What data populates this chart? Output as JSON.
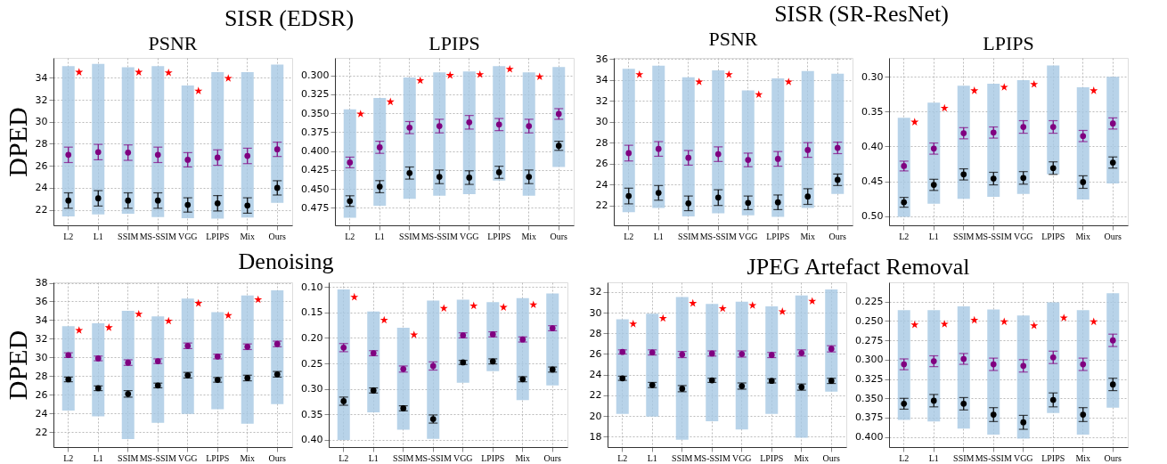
{
  "chart_data": [
    {
      "type": "bar",
      "title": "SISR (EDSR)",
      "subtitle": "PSNR",
      "ylabel": "DPED",
      "grid": true,
      "categories": [
        "L2",
        "L1",
        "SSIM",
        "MS-SSIM",
        "VGG",
        "LPIPS",
        "Mix",
        "Ours"
      ],
      "ylim": [
        20.6,
        35.8
      ],
      "yticks": [
        22,
        24,
        26,
        28,
        30,
        32,
        34
      ],
      "series": [
        {
          "color": "#a6c8e3",
          "base": [
            21.4,
            21.6,
            21.65,
            21.35,
            21.25,
            21.2,
            21.3,
            22.65
          ],
          "values": [
            13.65,
            13.65,
            13.3,
            13.7,
            12.05,
            13.3,
            13.2,
            12.55
          ]
        },
        {
          "type": "scatter",
          "marker": "circle",
          "color": "#800080",
          "values": [
            27.0,
            27.25,
            27.2,
            27.0,
            26.55,
            26.75,
            26.9,
            27.5
          ],
          "errors": [
            0.7,
            0.7,
            0.7,
            0.7,
            0.65,
            0.7,
            0.7,
            0.65
          ]
        },
        {
          "type": "scatter",
          "marker": "circle",
          "color": "#000000",
          "values": [
            22.85,
            23.05,
            22.85,
            22.85,
            22.45,
            22.6,
            22.4,
            24.0
          ],
          "errors": [
            0.7,
            0.7,
            0.7,
            0.7,
            0.65,
            0.7,
            0.7,
            0.65
          ]
        },
        {
          "type": "scatter",
          "marker": "star",
          "color": "#ff0000",
          "values": [
            34.5,
            null,
            34.5,
            34.45,
            32.8,
            33.95,
            null,
            null
          ]
        }
      ]
    },
    {
      "type": "bar",
      "subtitle": "LPIPS",
      "grid": true,
      "categories": [
        "L2",
        "L1",
        "SSIM",
        "MS-SSIM",
        "VGG",
        "LPIPS",
        "Mix",
        "Ours"
      ],
      "ylim": [
        0.498,
        0.277
      ],
      "yticks": [
        {
          "value": 0.3,
          "label": "0.300"
        },
        0.325,
        {
          "value": 0.35,
          "label": "0.350"
        },
        0.375,
        {
          "value": 0.4,
          "label": "0.400"
        },
        0.425,
        {
          "value": 0.45,
          "label": "0.450"
        },
        0.475
      ],
      "series": [
        {
          "color": "#a6c8e3",
          "base": [
            0.345,
            0.33,
            0.303,
            0.296,
            0.295,
            0.288,
            0.296,
            0.289
          ],
          "values": [
            0.143,
            0.142,
            0.16,
            0.163,
            0.162,
            0.151,
            0.163,
            0.132
          ]
        },
        {
          "type": "scatter",
          "marker": "circle",
          "color": "#800080",
          "values": [
            0.415,
            0.395,
            0.369,
            0.367,
            0.362,
            0.365,
            0.367,
            0.351
          ],
          "errors": [
            0.007,
            0.008,
            0.008,
            0.009,
            0.009,
            0.008,
            0.009,
            0.007
          ]
        },
        {
          "type": "scatter",
          "marker": "circle",
          "color": "#000000",
          "values": [
            0.466,
            0.447,
            0.429,
            0.434,
            0.435,
            0.428,
            0.434,
            0.393
          ],
          "errors": [
            0.007,
            0.008,
            0.008,
            0.009,
            0.009,
            0.008,
            0.009,
            0.006
          ]
        },
        {
          "type": "scatter",
          "marker": "star",
          "color": "#ff0000",
          "values": [
            0.351,
            0.335,
            0.307,
            0.3,
            0.299,
            0.292,
            0.302,
            null
          ]
        }
      ]
    },
    {
      "type": "bar",
      "title": "SISR (SR-ResNet)",
      "subtitle": "PSNR",
      "grid": true,
      "categories": [
        "L2",
        "L1",
        "SSIM",
        "MS-SSIM",
        "VGG",
        "LPIPS",
        "Mix",
        "Ours"
      ],
      "ylim": [
        20.1,
        36.1
      ],
      "yticks": [
        22,
        24,
        26,
        28,
        30,
        32,
        34,
        36
      ],
      "series": [
        {
          "color": "#a6c8e3",
          "base": [
            21.35,
            21.75,
            20.95,
            21.25,
            21.05,
            20.9,
            21.75,
            23.1
          ],
          "values": [
            13.7,
            13.6,
            13.3,
            13.65,
            11.95,
            13.25,
            13.1,
            11.5
          ]
        },
        {
          "type": "scatter",
          "marker": "circle",
          "color": "#800080",
          "values": [
            27.0,
            27.4,
            26.55,
            26.9,
            26.35,
            26.45,
            27.3,
            27.5
          ],
          "errors": [
            0.75,
            0.7,
            0.7,
            0.7,
            0.65,
            0.7,
            0.7,
            0.55
          ]
        },
        {
          "type": "scatter",
          "marker": "circle",
          "color": "#000000",
          "values": [
            22.9,
            23.2,
            22.2,
            22.75,
            22.25,
            22.3,
            22.85,
            24.45
          ],
          "errors": [
            0.75,
            0.7,
            0.7,
            0.75,
            0.65,
            0.7,
            0.75,
            0.55
          ]
        },
        {
          "type": "scatter",
          "marker": "star",
          "color": "#ff0000",
          "values": [
            34.5,
            null,
            33.8,
            34.5,
            32.6,
            33.8,
            null,
            null
          ]
        }
      ]
    },
    {
      "type": "bar",
      "subtitle": "LPIPS",
      "grid": true,
      "categories": [
        "L2",
        "L1",
        "SSIM",
        "MS-SSIM",
        "VGG",
        "LPIPS",
        "Mix",
        "Ours"
      ],
      "ylim": [
        0.513,
        0.273
      ],
      "yticks": [
        {
          "value": 0.3,
          "label": "0.30"
        },
        0.35,
        {
          "value": 0.4,
          "label": "0.40"
        },
        0.45,
        {
          "value": 0.5,
          "label": "0.50"
        }
      ],
      "series": [
        {
          "color": "#a6c8e3",
          "base": [
            0.359,
            0.337,
            0.313,
            0.31,
            0.305,
            0.284,
            0.315,
            0.3
          ],
          "values": [
            0.142,
            0.145,
            0.162,
            0.162,
            0.163,
            0.156,
            0.161,
            0.153
          ]
        },
        {
          "type": "scatter",
          "marker": "circle",
          "color": "#800080",
          "values": [
            0.428,
            0.403,
            0.381,
            0.38,
            0.372,
            0.372,
            0.385,
            0.367
          ],
          "errors": [
            0.007,
            0.008,
            0.008,
            0.008,
            0.009,
            0.009,
            0.008,
            0.008
          ]
        },
        {
          "type": "scatter",
          "marker": "circle",
          "color": "#000000",
          "values": [
            0.48,
            0.455,
            0.44,
            0.446,
            0.445,
            0.431,
            0.451,
            0.423
          ],
          "errors": [
            0.007,
            0.008,
            0.008,
            0.009,
            0.009,
            0.009,
            0.009,
            0.008
          ]
        },
        {
          "type": "scatter",
          "marker": "star",
          "color": "#ff0000",
          "values": [
            0.365,
            0.345,
            0.32,
            0.315,
            0.311,
            null,
            0.32,
            null
          ]
        }
      ]
    },
    {
      "type": "bar",
      "title": "Denoising",
      "ylabel": "DPED",
      "grid": true,
      "categories": [
        "L2",
        "L1",
        "SSIM",
        "MS-SSIM",
        "VGG",
        "LPIPS",
        "Mix",
        "Ours"
      ],
      "ylim": [
        20.4,
        38.05
      ],
      "yticks": [
        22,
        24,
        26,
        28,
        30,
        32,
        34,
        36,
        38
      ],
      "series": [
        {
          "color": "#a6c8e3",
          "base": [
            24.3,
            23.7,
            21.25,
            23.0,
            23.95,
            24.45,
            22.9,
            25.0
          ],
          "values": [
            9.05,
            9.95,
            13.75,
            11.4,
            12.35,
            10.4,
            13.75,
            12.2
          ]
        },
        {
          "type": "scatter",
          "marker": "circle",
          "color": "#800080",
          "values": [
            30.25,
            29.9,
            29.45,
            29.6,
            31.25,
            30.1,
            31.15,
            31.45
          ],
          "errors": [
            0.25,
            0.25,
            0.3,
            0.25,
            0.3,
            0.25,
            0.3,
            0.3
          ]
        },
        {
          "type": "scatter",
          "marker": "circle",
          "color": "#000000",
          "values": [
            27.65,
            26.7,
            26.1,
            27.0,
            28.1,
            27.6,
            27.8,
            28.2
          ],
          "errors": [
            0.25,
            0.25,
            0.35,
            0.25,
            0.3,
            0.25,
            0.3,
            0.3
          ]
        },
        {
          "type": "scatter",
          "marker": "star",
          "color": "#ff0000",
          "values": [
            32.9,
            33.2,
            34.65,
            33.9,
            35.8,
            34.5,
            36.2,
            null
          ]
        }
      ]
    },
    {
      "type": "bar",
      "grid": true,
      "categories": [
        "L2",
        "L1",
        "SSIM",
        "MS-SSIM",
        "VGG",
        "LPIPS",
        "Mix",
        "Ours"
      ],
      "ylim": [
        0.414,
        0.091
      ],
      "yticks": [
        {
          "value": 0.1,
          "label": "0.10"
        },
        0.15,
        {
          "value": 0.2,
          "label": "0.20"
        },
        0.25,
        {
          "value": 0.3,
          "label": "0.30"
        },
        0.35,
        {
          "value": 0.4,
          "label": "0.40"
        }
      ],
      "series": [
        {
          "color": "#a6c8e3",
          "base": [
            0.105,
            0.148,
            0.18,
            0.127,
            0.125,
            0.13,
            0.122,
            0.113
          ],
          "values": [
            0.295,
            0.198,
            0.2,
            0.271,
            0.163,
            0.135,
            0.2,
            0.18
          ]
        },
        {
          "type": "scatter",
          "marker": "circle",
          "color": "#800080",
          "values": [
            0.219,
            0.23,
            0.261,
            0.255,
            0.195,
            0.193,
            0.203,
            0.181
          ],
          "errors": [
            0.008,
            0.005,
            0.006,
            0.008,
            0.005,
            0.005,
            0.005,
            0.005
          ]
        },
        {
          "type": "scatter",
          "marker": "circle",
          "color": "#000000",
          "values": [
            0.324,
            0.303,
            0.338,
            0.359,
            0.248,
            0.246,
            0.281,
            0.262
          ],
          "errors": [
            0.008,
            0.005,
            0.005,
            0.008,
            0.004,
            0.005,
            0.005,
            0.005
          ]
        },
        {
          "type": "scatter",
          "marker": "star",
          "color": "#ff0000",
          "values": [
            0.12,
            0.165,
            0.194,
            0.142,
            0.137,
            0.14,
            0.135,
            null
          ]
        }
      ]
    },
    {
      "type": "bar",
      "title": "JPEG Artefact Removal",
      "grid": true,
      "categories": [
        "L2",
        "L1",
        "SSIM",
        "MS-SSIM",
        "VGG",
        "LPIPS",
        "Mix",
        "Ours"
      ],
      "ylim": [
        17.0,
        32.93
      ],
      "yticks": [
        18,
        20,
        22,
        24,
        26,
        28,
        30,
        32
      ],
      "series": [
        {
          "color": "#a6c8e3",
          "base": [
            20.2,
            19.95,
            17.7,
            19.5,
            18.7,
            20.2,
            17.9,
            22.35
          ],
          "values": [
            9.15,
            9.95,
            13.8,
            11.35,
            12.35,
            10.4,
            13.75,
            9.9
          ]
        },
        {
          "type": "scatter",
          "marker": "circle",
          "color": "#800080",
          "values": [
            26.2,
            26.15,
            25.95,
            26.05,
            26.0,
            25.9,
            26.1,
            26.5
          ],
          "errors": [
            0.2,
            0.25,
            0.3,
            0.25,
            0.3,
            0.25,
            0.3,
            0.3
          ]
        },
        {
          "type": "scatter",
          "marker": "circle",
          "color": "#000000",
          "values": [
            23.65,
            23.0,
            22.65,
            23.45,
            22.9,
            23.4,
            22.8,
            23.4
          ],
          "errors": [
            0.2,
            0.25,
            0.3,
            0.2,
            0.3,
            0.2,
            0.3,
            0.25
          ]
        },
        {
          "type": "scatter",
          "marker": "star",
          "color": "#ff0000",
          "values": [
            28.9,
            29.45,
            30.9,
            30.4,
            30.7,
            30.1,
            31.1,
            null
          ]
        }
      ]
    },
    {
      "type": "bar",
      "grid": true,
      "categories": [
        "L2",
        "L1",
        "SSIM",
        "MS-SSIM",
        "VGG",
        "LPIPS",
        "Mix",
        "Ours"
      ],
      "ylim": [
        0.413,
        0.2
      ],
      "yticks": [
        0.225,
        {
          "value": 0.25,
          "label": "0.250"
        },
        0.275,
        {
          "value": 0.3,
          "label": "0.300"
        },
        0.325,
        {
          "value": 0.35,
          "label": "0.350"
        },
        0.375,
        {
          "value": 0.4,
          "label": "0.400"
        }
      ],
      "series": [
        {
          "color": "#a6c8e3",
          "base": [
            0.236,
            0.236,
            0.231,
            0.235,
            0.243,
            0.226,
            0.236,
            0.214
          ],
          "values": [
            0.142,
            0.144,
            0.158,
            0.162,
            0.159,
            0.143,
            0.161,
            0.148
          ]
        },
        {
          "type": "scatter",
          "marker": "circle",
          "color": "#800080",
          "values": [
            0.306,
            0.302,
            0.299,
            0.306,
            0.308,
            0.297,
            0.306,
            0.275
          ],
          "errors": [
            0.007,
            0.007,
            0.007,
            0.008,
            0.008,
            0.008,
            0.008,
            0.008
          ]
        },
        {
          "type": "scatter",
          "marker": "circle",
          "color": "#000000",
          "values": [
            0.357,
            0.353,
            0.357,
            0.371,
            0.381,
            0.352,
            0.371,
            0.332
          ],
          "errors": [
            0.007,
            0.008,
            0.008,
            0.009,
            0.009,
            0.009,
            0.009,
            0.008
          ]
        },
        {
          "type": "scatter",
          "marker": "star",
          "color": "#ff0000",
          "values": [
            0.255,
            0.254,
            0.249,
            0.251,
            0.256,
            0.246,
            0.251,
            null
          ]
        }
      ]
    }
  ]
}
